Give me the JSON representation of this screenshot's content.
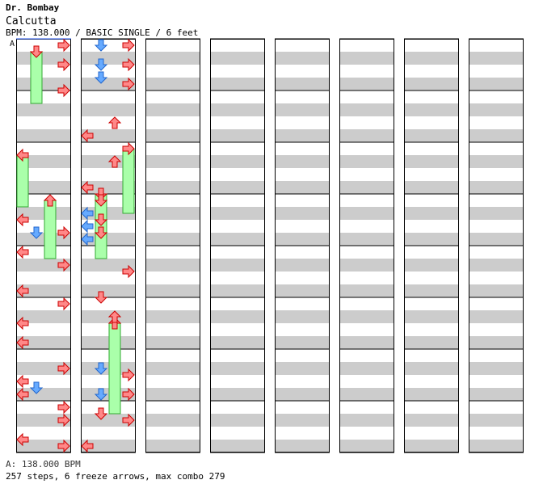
{
  "header": {
    "artist": "Dr. Bombay",
    "title": "Calcutta",
    "info": "BPM: 138.000 / BASIC SINGLE / 6 feet"
  },
  "chart": {
    "columns": 8,
    "beats_per_column": 16,
    "lanes": [
      "left",
      "down",
      "up",
      "right"
    ],
    "bpm_marker_label": "A",
    "colors": {
      "quarter_note": "#ff8888",
      "eighth_note": "#66aaff",
      "freeze": "#aaffaa",
      "stripe_light": "#ffffff",
      "stripe_dark": "#cccccc"
    },
    "notes": [
      {
        "beat": 0.25,
        "lane": "right",
        "c": "red"
      },
      {
        "beat": 1.0,
        "lane": "right",
        "c": "red"
      },
      {
        "beat": 2.0,
        "lane": "right",
        "c": "red"
      },
      {
        "beat": 7.0,
        "lane": "left",
        "c": "red"
      },
      {
        "beat": 7.5,
        "lane": "down",
        "c": "blue"
      },
      {
        "beat": 7.5,
        "lane": "right",
        "c": "red"
      },
      {
        "beat": 8.25,
        "lane": "left",
        "c": "red"
      },
      {
        "beat": 8.75,
        "lane": "right",
        "c": "red"
      },
      {
        "beat": 9.75,
        "lane": "left",
        "c": "red"
      },
      {
        "beat": 10.25,
        "lane": "right",
        "c": "red"
      },
      {
        "beat": 11.0,
        "lane": "left",
        "c": "red"
      },
      {
        "beat": 11.75,
        "lane": "left",
        "c": "red"
      },
      {
        "beat": 12.75,
        "lane": "right",
        "c": "red"
      },
      {
        "beat": 13.25,
        "lane": "left",
        "c": "red"
      },
      {
        "beat": 13.5,
        "lane": "down",
        "c": "blue"
      },
      {
        "beat": 13.75,
        "lane": "left",
        "c": "red"
      },
      {
        "beat": 14.25,
        "lane": "right",
        "c": "red"
      },
      {
        "beat": 14.75,
        "lane": "right",
        "c": "red"
      },
      {
        "beat": 15.5,
        "lane": "left",
        "c": "red"
      },
      {
        "beat": 15.75,
        "lane": "right",
        "c": "red"
      },
      {
        "beat": 16.25,
        "lane": "down",
        "c": "blue"
      },
      {
        "beat": 16.25,
        "lane": "right",
        "c": "red"
      },
      {
        "beat": 17.0,
        "lane": "down",
        "c": "blue"
      },
      {
        "beat": 17.0,
        "lane": "right",
        "c": "red"
      },
      {
        "beat": 17.5,
        "lane": "down",
        "c": "blue"
      },
      {
        "beat": 17.75,
        "lane": "right",
        "c": "red"
      },
      {
        "beat": 19.75,
        "lane": "left",
        "c": "red"
      },
      {
        "beat": 19.25,
        "lane": "up",
        "c": "red"
      },
      {
        "beat": 20.75,
        "lane": "up",
        "c": "red"
      },
      {
        "beat": 21.75,
        "lane": "left",
        "c": "red"
      },
      {
        "beat": 22.25,
        "lane": "down",
        "c": "red"
      },
      {
        "beat": 22.75,
        "lane": "left",
        "c": "blue"
      },
      {
        "beat": 23.0,
        "lane": "down",
        "c": "red"
      },
      {
        "beat": 23.25,
        "lane": "left",
        "c": "blue"
      },
      {
        "beat": 23.5,
        "lane": "down",
        "c": "red"
      },
      {
        "beat": 23.75,
        "lane": "left",
        "c": "blue"
      },
      {
        "beat": 25.0,
        "lane": "right",
        "c": "red"
      },
      {
        "beat": 26.0,
        "lane": "down",
        "c": "red"
      },
      {
        "beat": 26.75,
        "lane": "up",
        "c": "red"
      },
      {
        "beat": 28.75,
        "lane": "down",
        "c": "blue"
      },
      {
        "beat": 29.0,
        "lane": "right",
        "c": "red"
      },
      {
        "beat": 29.75,
        "lane": "down",
        "c": "blue"
      },
      {
        "beat": 29.75,
        "lane": "right",
        "c": "red"
      },
      {
        "beat": 30.5,
        "lane": "down",
        "c": "red"
      },
      {
        "beat": 30.75,
        "lane": "right",
        "c": "red"
      },
      {
        "beat": 31.75,
        "lane": "left",
        "c": "red"
      }
    ],
    "freezes": [
      {
        "start": 0.5,
        "end": 2.5,
        "lane": "down"
      },
      {
        "start": 4.5,
        "end": 6.5,
        "lane": "left"
      },
      {
        "start": 6.25,
        "end": 8.5,
        "lane": "up"
      },
      {
        "start": 20.25,
        "end": 22.75,
        "lane": "right"
      },
      {
        "start": 22.0,
        "end": 24.5,
        "lane": "down"
      },
      {
        "start": 27.0,
        "end": 30.5,
        "lane": "up"
      }
    ]
  },
  "footer": {
    "bpm_line": "A: 138.000 BPM",
    "stats": "257 steps, 6 freeze arrows, max combo 279"
  }
}
